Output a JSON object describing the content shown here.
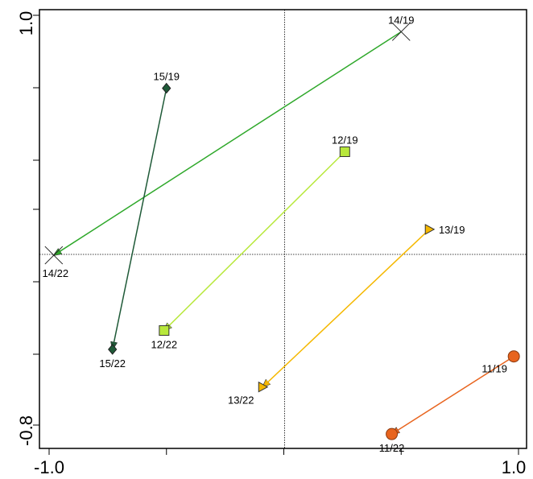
{
  "chart_data": {
    "type": "scatter",
    "title": "",
    "xlabel": "",
    "ylabel": "",
    "xlim": [
      -1.0,
      1.0
    ],
    "ylim": [
      -0.8,
      1.0
    ],
    "x_tick_labels": [
      "-1.0",
      "1.0"
    ],
    "y_tick_labels": [
      "1.0",
      "-0.8"
    ],
    "grid": false,
    "reference_lines": {
      "x": 0,
      "y": 0
    },
    "series": [
      {
        "id": "11",
        "marker": "circle",
        "color": "#e8641e",
        "from": {
          "label": "11/19",
          "x": 0.98,
          "y": -0.45
        },
        "to": {
          "label": "11/22",
          "x": 0.46,
          "y": -0.78
        }
      },
      {
        "id": "12",
        "marker": "square",
        "color": "#b8e83c",
        "from": {
          "label": "12/19",
          "x": 0.26,
          "y": 0.42
        },
        "to": {
          "label": "12/22",
          "x": -0.51,
          "y": -0.34
        }
      },
      {
        "id": "13",
        "marker": "triangle-right",
        "color": "#f5b800",
        "from": {
          "label": "13/19",
          "x": 0.62,
          "y": 0.09
        },
        "to": {
          "label": "13/22",
          "x": -0.09,
          "y": -0.58
        }
      },
      {
        "id": "14",
        "marker": "x",
        "color": "#2ea82a",
        "from": {
          "label": "14/19",
          "x": 0.5,
          "y": 0.93
        },
        "to": {
          "label": "14/22",
          "x": -0.98,
          "y": -0.02
        }
      },
      {
        "id": "15",
        "marker": "diamond",
        "color": "#1f5a38",
        "from": {
          "label": "15/19",
          "x": -0.5,
          "y": 0.69
        },
        "to": {
          "label": "15/22",
          "x": -0.73,
          "y": -0.42
        }
      }
    ]
  }
}
